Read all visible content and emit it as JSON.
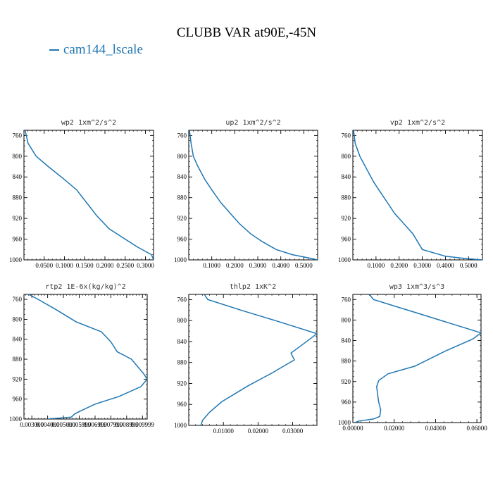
{
  "title": "CLUBB VAR at90E,-45N",
  "legend": {
    "label": "cam144_lscale",
    "color": "#1f77b4"
  },
  "chart_data": [
    {
      "type": "line",
      "title": "wp2   1xm^2/s^2",
      "xlim": [
        0.0,
        0.32
      ],
      "ylim": [
        750,
        1000
      ],
      "xticks": [
        0.05,
        0.1,
        0.15,
        0.2,
        0.25,
        0.3
      ],
      "xticklabels": [
        "0.0500",
        "0.1000",
        "0.1500",
        "0.2000",
        "0.2500",
        "0.3000"
      ],
      "yticks": [
        760,
        800,
        840,
        880,
        920,
        960,
        1000
      ],
      "yticklabels": [
        "760",
        "800",
        "840",
        "880",
        "920",
        "960",
        "1000"
      ],
      "series": [
        {
          "x": [
            0.003,
            0.01,
            0.03,
            0.06,
            0.1,
            0.13,
            0.155,
            0.18,
            0.21,
            0.24,
            0.28,
            0.315,
            0.32
          ],
          "y": [
            750,
            775,
            800,
            820,
            845,
            865,
            890,
            915,
            940,
            955,
            975,
            990,
            1000
          ]
        }
      ]
    },
    {
      "type": "line",
      "title": "up2   1xm^2/s^2",
      "xlim": [
        0.0,
        0.56
      ],
      "ylim": [
        750,
        1000
      ],
      "xticks": [
        0.1,
        0.2,
        0.3,
        0.4,
        0.5
      ],
      "xticklabels": [
        "0.1000",
        "0.2000",
        "0.3000",
        "0.4000",
        "0.5000"
      ],
      "yticks": [
        760,
        800,
        840,
        880,
        920,
        960,
        1000
      ],
      "yticklabels": [
        "760",
        "800",
        "840",
        "880",
        "920",
        "960",
        "1000"
      ],
      "series": [
        {
          "x": [
            0.003,
            0.01,
            0.02,
            0.04,
            0.07,
            0.1,
            0.14,
            0.18,
            0.22,
            0.27,
            0.32,
            0.38,
            0.45,
            0.52,
            0.56
          ],
          "y": [
            750,
            775,
            800,
            820,
            845,
            865,
            890,
            910,
            930,
            950,
            965,
            980,
            990,
            996,
            1000
          ]
        }
      ]
    },
    {
      "type": "line",
      "title": "vp2   1xm^2/s^2",
      "xlim": [
        0.0,
        0.56
      ],
      "ylim": [
        750,
        1000
      ],
      "xticks": [
        0.1,
        0.2,
        0.3,
        0.4,
        0.5
      ],
      "xticklabels": [
        "0.1000",
        "0.2000",
        "0.3000",
        "0.4000",
        "0.5000"
      ],
      "yticks": [
        760,
        800,
        840,
        880,
        920,
        960,
        1000
      ],
      "yticklabels": [
        "760",
        "800",
        "840",
        "880",
        "920",
        "960",
        "1000"
      ],
      "series": [
        {
          "x": [
            0.003,
            0.01,
            0.03,
            0.06,
            0.09,
            0.12,
            0.15,
            0.18,
            0.22,
            0.26,
            0.3,
            0.4,
            0.5,
            0.56
          ],
          "y": [
            750,
            775,
            800,
            825,
            850,
            870,
            890,
            910,
            930,
            950,
            980,
            993,
            998,
            1000
          ]
        }
      ]
    },
    {
      "type": "line",
      "title": "rtp2   1E-6x(kg/kg)^2",
      "xlim": [
        0.0025,
        0.0103
      ],
      "ylim": [
        750,
        1000
      ],
      "xticks": [
        0.003,
        0.004,
        0.005,
        0.006,
        0.007,
        0.008,
        0.009,
        0.01
      ],
      "xticklabels": [
        "0.003000",
        "0.004000",
        "0.005000",
        "0.005999",
        "0.006999",
        "0.007999",
        "0.008999",
        "0.009999"
      ],
      "yticks": [
        760,
        800,
        840,
        880,
        920,
        960,
        1000
      ],
      "yticklabels": [
        "760",
        "800",
        "840",
        "880",
        "920",
        "960",
        "1000"
      ],
      "series": [
        {
          "x": [
            0.0028,
            0.0034,
            0.0045,
            0.0058,
            0.0074,
            0.008,
            0.0084,
            0.0093,
            0.0101,
            0.0103,
            0.0099,
            0.0085,
            0.007,
            0.006,
            0.0057,
            0.0055,
            0.004
          ],
          "y": [
            750,
            760,
            780,
            805,
            825,
            845,
            865,
            880,
            910,
            920,
            935,
            955,
            970,
            985,
            990,
            996,
            1000
          ]
        }
      ]
    },
    {
      "type": "line",
      "title": "thlp2   1xK^2",
      "xlim": [
        0.0,
        0.037
      ],
      "ylim": [
        750,
        1000
      ],
      "xticks": [
        0.01,
        0.02,
        0.03
      ],
      "xticklabels": [
        "0.01000",
        "0.02000",
        "0.03000"
      ],
      "yticks": [
        760,
        800,
        840,
        880,
        920,
        960,
        1000
      ],
      "yticklabels": [
        "760",
        "800",
        "840",
        "880",
        "920",
        "960",
        "1000"
      ],
      "series": [
        {
          "x": [
            0.0045,
            0.0055,
            0.015,
            0.025,
            0.037,
            0.033,
            0.0295,
            0.0305,
            0.024,
            0.017,
            0.0095,
            0.006,
            0.004,
            0.0035
          ],
          "y": [
            750,
            760,
            780,
            800,
            825,
            845,
            862,
            875,
            900,
            925,
            955,
            975,
            990,
            1000
          ]
        }
      ]
    },
    {
      "type": "line",
      "title": "wp3   1xm^3/s^3",
      "xlim": [
        0.0,
        0.062
      ],
      "ylim": [
        750,
        1000
      ],
      "xticks": [
        0.0,
        0.02,
        0.04,
        0.06
      ],
      "xticklabels": [
        "0.00000",
        "0.02000",
        "0.04000",
        "0.06000"
      ],
      "yticks": [
        760,
        800,
        840,
        880,
        920,
        960,
        1000
      ],
      "yticklabels": [
        "760",
        "800",
        "840",
        "880",
        "920",
        "960",
        "1000"
      ],
      "series": [
        {
          "x": [
            0.008,
            0.01,
            0.03,
            0.062,
            0.058,
            0.045,
            0.03,
            0.017,
            0.0125,
            0.0115,
            0.012,
            0.0125,
            0.0135,
            0.013,
            0.01,
            0.003,
            0.001
          ],
          "y": [
            750,
            760,
            785,
            825,
            837,
            860,
            890,
            905,
            918,
            930,
            945,
            960,
            975,
            988,
            993,
            997,
            1000
          ]
        }
      ]
    }
  ]
}
